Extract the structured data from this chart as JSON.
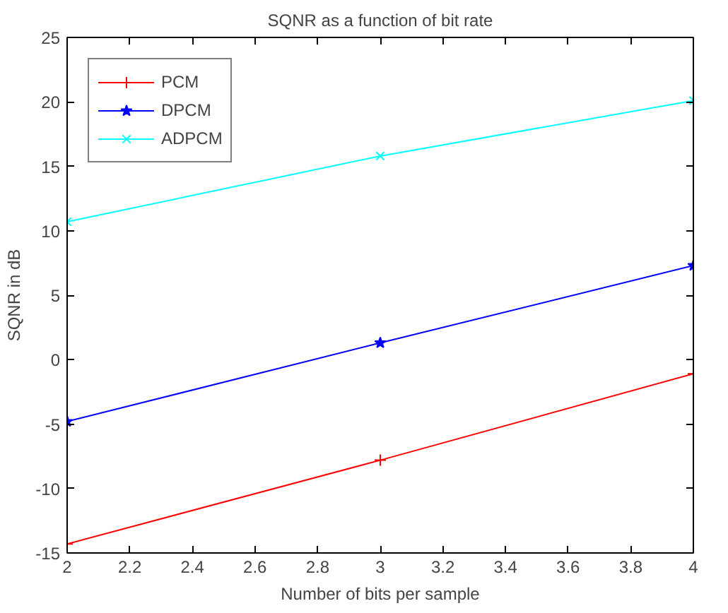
{
  "chart_data": {
    "type": "line",
    "title": "SQNR as a function of bit rate",
    "xlabel": "Number of bits per sample",
    "ylabel": "SQNR in dB",
    "x": [
      2,
      3,
      4
    ],
    "series": [
      {
        "name": "PCM",
        "color": "#ff0000",
        "marker": "cross",
        "values": [
          -14.3,
          -7.8,
          -1.1
        ]
      },
      {
        "name": "DPCM",
        "color": "#0000ff",
        "marker": "star",
        "values": [
          -4.8,
          1.3,
          7.3
        ]
      },
      {
        "name": "ADPCM",
        "color": "#00ffff",
        "marker": "x",
        "values": [
          10.7,
          15.8,
          20.1
        ]
      }
    ],
    "xlim": [
      2,
      4
    ],
    "ylim": [
      -15,
      25
    ],
    "xticks": [
      2,
      2.2,
      2.4,
      2.6,
      2.8,
      3,
      3.2,
      3.4,
      3.6,
      3.8,
      4
    ],
    "yticks": [
      -15,
      -10,
      -5,
      0,
      5,
      10,
      15,
      20,
      25
    ],
    "grid": false,
    "legend": "top left",
    "line_style": "solid"
  }
}
